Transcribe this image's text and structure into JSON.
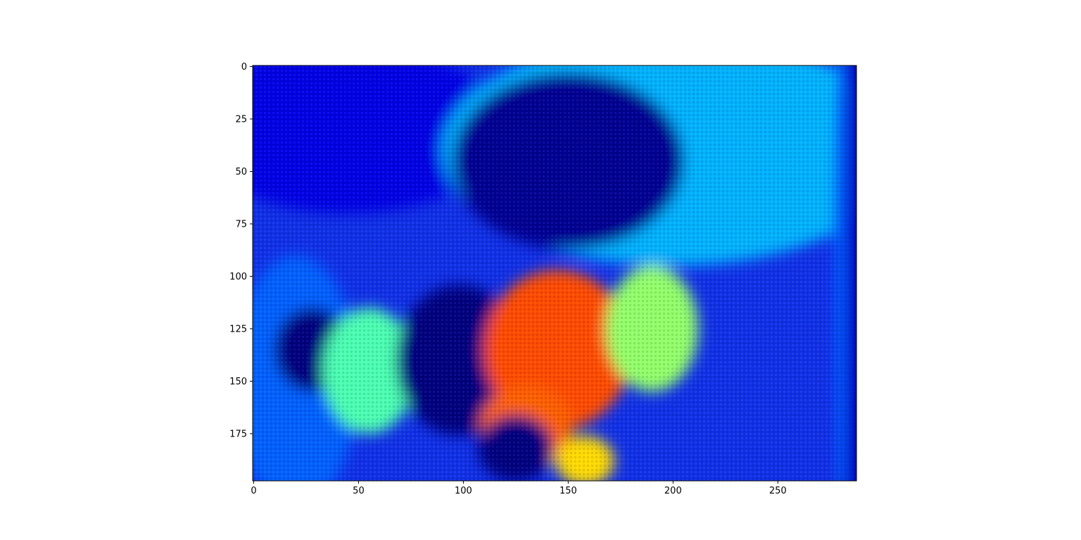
{
  "chart_data": {
    "type": "heatmap",
    "title": "",
    "xlabel": "",
    "ylabel": "",
    "colormap": "jet",
    "colormap_stops": [
      "#00007f",
      "#0000ff",
      "#007fff",
      "#00ffff",
      "#7fff7f",
      "#ffff00",
      "#ff7f00",
      "#ff0000",
      "#7f0000"
    ],
    "image_width": 288,
    "image_height": 198,
    "xlim": [
      -0.5,
      287.5
    ],
    "ylim": [
      197.5,
      -0.5
    ],
    "x_ticks": [
      0,
      50,
      100,
      150,
      200,
      250
    ],
    "x_tick_labels": [
      "0",
      "50",
      "100",
      "150",
      "200",
      "250"
    ],
    "y_ticks": [
      0,
      25,
      50,
      75,
      100,
      125,
      150,
      175
    ],
    "y_tick_labels": [
      "0",
      "25",
      "50",
      "75",
      "100",
      "125",
      "150",
      "175"
    ],
    "grid": false,
    "value_range": [
      0,
      1
    ],
    "regions": [
      {
        "name": "upper-left background",
        "cx": 45,
        "cy": 30,
        "rx": 75,
        "ry": 40,
        "value": 0.1
      },
      {
        "name": "upper-right background",
        "cx": 200,
        "cy": 40,
        "rx": 110,
        "ry": 55,
        "value": 0.3
      },
      {
        "name": "right edge band",
        "cx": 283,
        "cy": 100,
        "rx": 6,
        "ry": 110,
        "value": 0.2
      },
      {
        "name": "lower-left foreground",
        "cx": 20,
        "cy": 150,
        "rx": 30,
        "ry": 60,
        "value": 0.22
      },
      {
        "name": "dark ring left",
        "cx": 28,
        "cy": 135,
        "rx": 18,
        "ry": 20,
        "value": 0.0
      },
      {
        "name": "cyan-green object left",
        "cx": 55,
        "cy": 145,
        "rx": 22,
        "ry": 30,
        "value": 0.45
      },
      {
        "name": "dark disk center",
        "cx": 98,
        "cy": 140,
        "rx": 30,
        "ry": 36,
        "value": 0.0
      },
      {
        "name": "orange region center",
        "cx": 145,
        "cy": 135,
        "rx": 35,
        "ry": 38,
        "value": 0.8
      },
      {
        "name": "orange region lower",
        "cx": 130,
        "cy": 172,
        "rx": 22,
        "ry": 20,
        "value": 0.78
      },
      {
        "name": "yellow region bottom",
        "cx": 158,
        "cy": 188,
        "rx": 14,
        "ry": 12,
        "value": 0.66
      },
      {
        "name": "yellow-green region right",
        "cx": 190,
        "cy": 125,
        "rx": 22,
        "ry": 30,
        "value": 0.52
      },
      {
        "name": "dark disk lower",
        "cx": 125,
        "cy": 182,
        "rx": 18,
        "ry": 16,
        "value": 0.0
      },
      {
        "name": "dark figure top",
        "cx": 150,
        "cy": 45,
        "rx": 55,
        "ry": 42,
        "value": 0.02
      }
    ]
  }
}
